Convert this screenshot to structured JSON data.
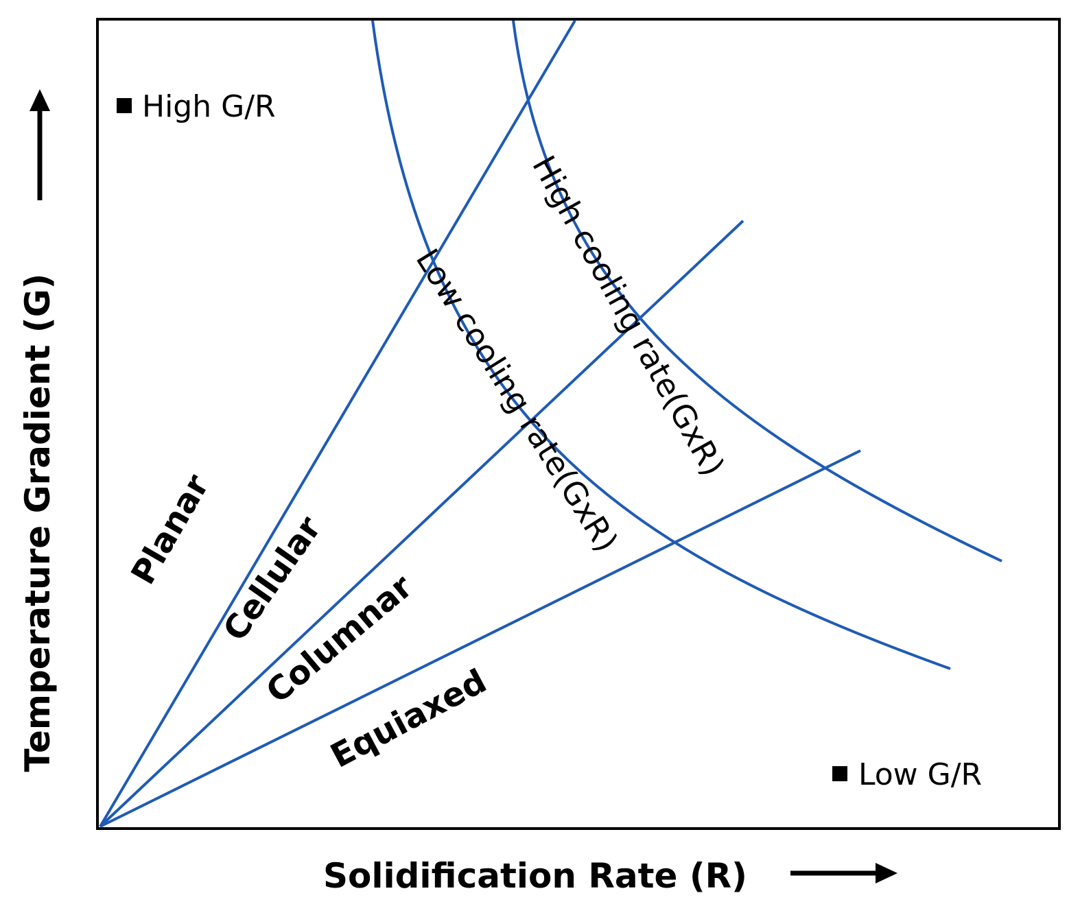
{
  "axes": {
    "x_label": "Solidification Rate (R)",
    "y_label": "Temperature Gradient (G)"
  },
  "corners": {
    "top_left": "High G/R",
    "bottom_right": "Low G/R"
  },
  "regions": {
    "planar": "Planar",
    "cellular": "Cellular",
    "columnar": "Columnar",
    "equiaxed": "Equiaxed"
  },
  "cooling": {
    "high": "High cooling rate(GxR)",
    "low": "Low cooling rate(GxR)"
  },
  "colors": {
    "curves": "#1f5bb5",
    "frame": "#000000"
  }
}
